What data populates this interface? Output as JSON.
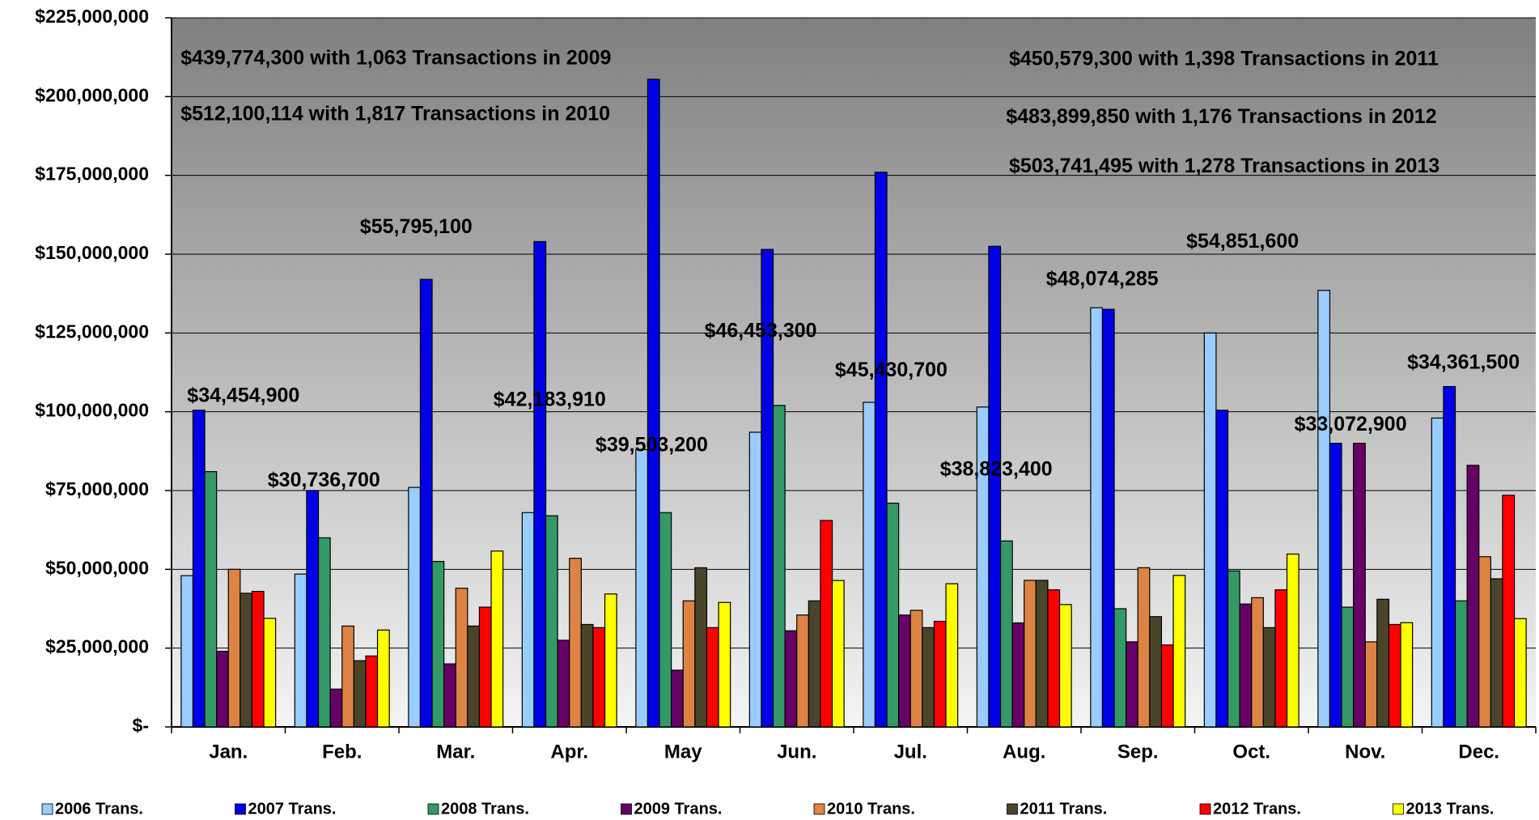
{
  "chart_data": {
    "type": "bar",
    "categories": [
      "Jan.",
      "Feb.",
      "Mar.",
      "Apr.",
      "May",
      "Jun.",
      "Jul.",
      "Aug.",
      "Sep.",
      "Oct.",
      "Nov.",
      "Dec."
    ],
    "series": [
      {
        "name": "2006 Trans.",
        "color": "#99ccff",
        "values": [
          48000000,
          48500000,
          76000000,
          68000000,
          88000000,
          93500000,
          103000000,
          101500000,
          133000000,
          125000000,
          138500000,
          98000000
        ]
      },
      {
        "name": "2007 Trans.",
        "color": "#0000e6",
        "values": [
          100500000,
          75000000,
          142000000,
          154000000,
          205500000,
          151500000,
          176000000,
          152500000,
          132500000,
          100500000,
          90000000,
          108000000
        ]
      },
      {
        "name": "2008 Trans.",
        "color": "#339966",
        "values": [
          81000000,
          60000000,
          52500000,
          67000000,
          68000000,
          102000000,
          71000000,
          59000000,
          37500000,
          49500000,
          38000000,
          40000000
        ]
      },
      {
        "name": "2009 Trans.",
        "color": "#660066",
        "values": [
          24000000,
          12000000,
          20000000,
          27500000,
          18000000,
          30500000,
          35500000,
          33000000,
          27000000,
          39000000,
          90000000,
          83000000
        ]
      },
      {
        "name": "2010 Trans.",
        "color": "#dd8444",
        "values": [
          50000000,
          32000000,
          44000000,
          53500000,
          40000000,
          35500000,
          37000000,
          46500000,
          50500000,
          41000000,
          27000000,
          54000000
        ]
      },
      {
        "name": "2011 Trans.",
        "color": "#4a452a",
        "values": [
          42400000,
          21000000,
          32000000,
          32500000,
          50500000,
          40000000,
          31500000,
          46500000,
          35000000,
          31500000,
          40500000,
          47000000
        ]
      },
      {
        "name": "2012 Trans.",
        "color": "#ff0000",
        "values": [
          43000000,
          22500000,
          38000000,
          31500000,
          31500000,
          65500000,
          33500000,
          43500000,
          26000000,
          43500000,
          32500000,
          73500000
        ]
      },
      {
        "name": "2013 Trans.",
        "color": "#ffff00",
        "values": [
          34454900,
          30736700,
          55795100,
          42183910,
          39503200,
          46453300,
          45430700,
          38823400,
          48074285,
          54851600,
          33072900,
          34361500
        ],
        "value_labels": [
          "$34,454,900",
          "$30,736,700",
          "$55,795,100",
          "$42,183,910",
          "$39,503,200",
          "$46,453,300",
          "$45,430,700",
          "$38,823,400",
          "$48,074,285",
          "$54,851,600",
          "$33,072,900",
          "$34,361,500"
        ]
      }
    ],
    "annotations": [
      "$439,774,300  with 1,063 Transactions in 2009",
      "$512,100,114 with 1,817 Transactions in 2010",
      "$450,579,300 with 1,398 Transactions in 2011",
      "$483,899,850 with 1,176 Transactions in 2012",
      "$503,741,495 with 1,278 Transactions in 2013"
    ],
    "ylim": [
      0,
      225000000
    ],
    "yticks": [
      {
        "value": 0,
        "label": "$-"
      },
      {
        "value": 25000000,
        "label": "$25,000,000"
      },
      {
        "value": 50000000,
        "label": "$50,000,000"
      },
      {
        "value": 75000000,
        "label": "$75,000,000"
      },
      {
        "value": 100000000,
        "label": "$100,000,000"
      },
      {
        "value": 125000000,
        "label": "$125,000,000"
      },
      {
        "value": 150000000,
        "label": "$150,000,000"
      },
      {
        "value": 175000000,
        "label": "$175,000,000"
      },
      {
        "value": 200000000,
        "label": "$200,000,000"
      },
      {
        "value": 225000000,
        "label": "$225,000,000"
      }
    ],
    "grid": true,
    "legend": "bottom"
  }
}
